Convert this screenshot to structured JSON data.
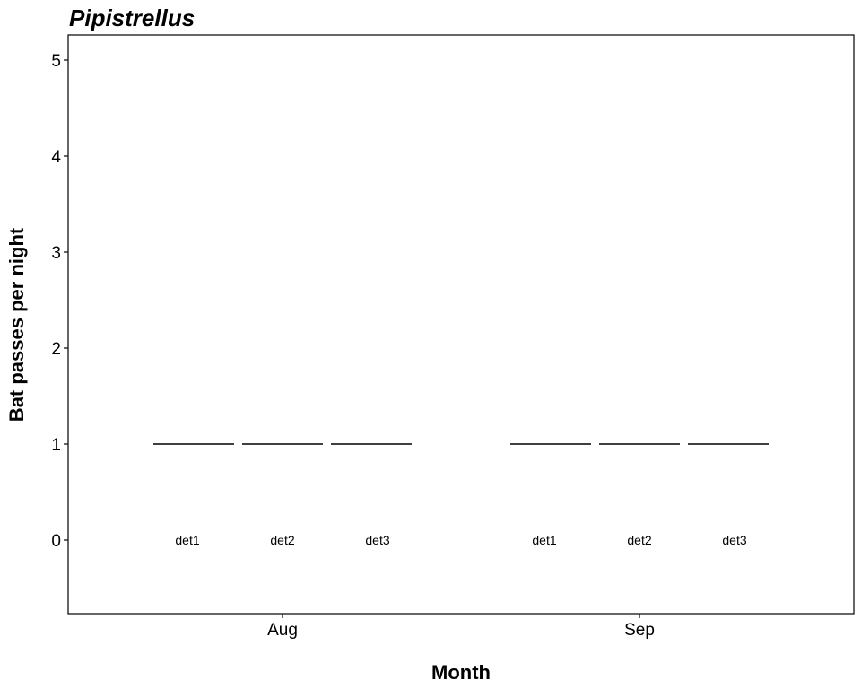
{
  "chart_data": {
    "type": "bar",
    "title": "Pipistrellus",
    "xlabel": "Month",
    "ylabel": "Bat passes per night",
    "categories": [
      "Aug",
      "Sep"
    ],
    "groups": [
      "det1",
      "det2",
      "det3"
    ],
    "series": [
      {
        "name": "det1",
        "values": [
          1,
          1
        ]
      },
      {
        "name": "det2",
        "values": [
          1,
          1
        ]
      },
      {
        "name": "det3",
        "values": [
          1,
          1
        ]
      }
    ],
    "y_ticks": [
      0,
      1,
      2,
      3,
      4,
      5
    ],
    "ylim": [
      -0.78,
      5.3
    ],
    "grid": false,
    "legend": "none",
    "colors": {
      "line": "#000000",
      "frame": "#000000",
      "background": "#ffffff"
    }
  }
}
